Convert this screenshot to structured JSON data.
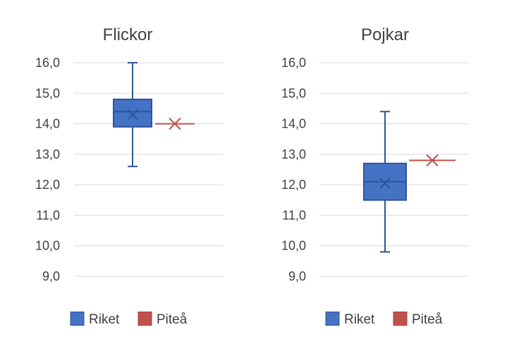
{
  "chart_data": [
    {
      "type": "boxplot",
      "title": "Flickor",
      "ylim": [
        9.0,
        16.0
      ],
      "yticks": [
        "16,0",
        "15,0",
        "14,0",
        "13,0",
        "12,0",
        "11,0",
        "10,0",
        "9,0"
      ],
      "ytick_values": [
        16,
        15,
        14,
        13,
        12,
        11,
        10,
        9
      ],
      "grid": true,
      "legend_position": "bottom",
      "series": [
        {
          "name": "Riket",
          "kind": "box",
          "min": 12.6,
          "q1": 13.9,
          "median": 14.4,
          "mean": 14.3,
          "q3": 14.8,
          "max": 16.0
        },
        {
          "name": "Piteå",
          "kind": "point",
          "value": 14.0
        }
      ]
    },
    {
      "type": "boxplot",
      "title": "Pojkar",
      "ylim": [
        9.0,
        16.0
      ],
      "yticks": [
        "16,0",
        "15,0",
        "14,0",
        "13,0",
        "12,0",
        "11,0",
        "10,0",
        "9,0"
      ],
      "ytick_values": [
        16,
        15,
        14,
        13,
        12,
        11,
        10,
        9
      ],
      "grid": true,
      "legend_position": "bottom",
      "series": [
        {
          "name": "Riket",
          "kind": "box",
          "min": 9.8,
          "q1": 11.5,
          "median": 12.1,
          "mean": 12.05,
          "q3": 12.7,
          "max": 14.4
        },
        {
          "name": "Piteå",
          "kind": "point",
          "value": 12.8
        }
      ]
    }
  ],
  "colors": {
    "riket_fill": "#4472c4",
    "riket_stroke": "#2f5597",
    "pitea": "#c0504d",
    "grid": "#d9d9d9",
    "text": "#404040"
  }
}
